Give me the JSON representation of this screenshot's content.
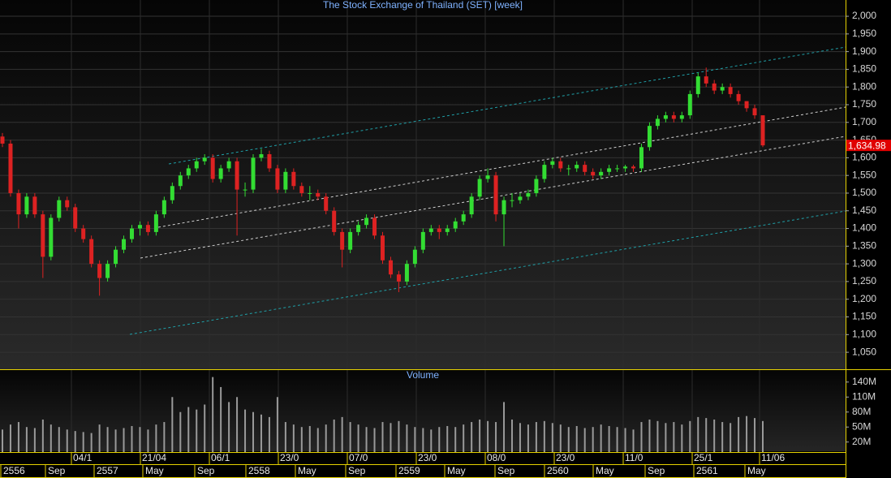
{
  "chart_data": [
    {
      "type": "candlestick",
      "title": "The Stock Exchange of Thailand (SET) [week]",
      "up_color": "#33dd33",
      "down_color": "#dd2222",
      "ylim": [
        1002,
        2046
      ],
      "yticks": [
        {
          "value": 1050,
          "label": "1,050"
        },
        {
          "value": 1100,
          "label": "1,100"
        },
        {
          "value": 1150,
          "label": "1,150"
        },
        {
          "value": 1200,
          "label": "1,200"
        },
        {
          "value": 1250,
          "label": "1,250"
        },
        {
          "value": 1300,
          "label": "1,300"
        },
        {
          "value": 1350,
          "label": "1,350"
        },
        {
          "value": 1400,
          "label": "1,400"
        },
        {
          "value": 1450,
          "label": "1,450"
        },
        {
          "value": 1500,
          "label": "1,500"
        },
        {
          "value": 1550,
          "label": "1,550"
        },
        {
          "value": 1600,
          "label": "1,600"
        },
        {
          "value": 1650,
          "label": "1,650"
        },
        {
          "value": 1700,
          "label": "1,700"
        },
        {
          "value": 1750,
          "label": "1,750"
        },
        {
          "value": 1800,
          "label": "1,800"
        },
        {
          "value": 1850,
          "label": "1,850"
        },
        {
          "value": 1900,
          "label": "1,900"
        },
        {
          "value": 1950,
          "label": "1,950"
        },
        {
          "value": 2000,
          "label": "2,000"
        }
      ],
      "grid": true,
      "last_label": "1,634.98",
      "ohlc": [
        [
          1660,
          1670,
          1630,
          1640
        ],
        [
          1640,
          1650,
          1490,
          1500
        ],
        [
          1500,
          1510,
          1400,
          1440
        ],
        [
          1440,
          1500,
          1430,
          1490
        ],
        [
          1490,
          1500,
          1430,
          1440
        ],
        [
          1440,
          1450,
          1260,
          1320
        ],
        [
          1320,
          1440,
          1310,
          1430
        ],
        [
          1430,
          1490,
          1420,
          1480
        ],
        [
          1480,
          1490,
          1450,
          1460
        ],
        [
          1460,
          1470,
          1390,
          1400
        ],
        [
          1400,
          1410,
          1360,
          1370
        ],
        [
          1370,
          1380,
          1290,
          1300
        ],
        [
          1300,
          1310,
          1210,
          1260
        ],
        [
          1260,
          1310,
          1250,
          1300
        ],
        [
          1300,
          1350,
          1290,
          1340
        ],
        [
          1340,
          1380,
          1330,
          1370
        ],
        [
          1370,
          1410,
          1360,
          1400
        ],
        [
          1400,
          1420,
          1380,
          1410
        ],
        [
          1410,
          1420,
          1380,
          1390
        ],
        [
          1390,
          1450,
          1380,
          1440
        ],
        [
          1440,
          1490,
          1430,
          1480
        ],
        [
          1480,
          1530,
          1470,
          1520
        ],
        [
          1520,
          1560,
          1510,
          1550
        ],
        [
          1550,
          1580,
          1540,
          1570
        ],
        [
          1570,
          1600,
          1560,
          1590
        ],
        [
          1590,
          1610,
          1580,
          1600
        ],
        [
          1600,
          1610,
          1530,
          1540
        ],
        [
          1540,
          1580,
          1530,
          1570
        ],
        [
          1570,
          1600,
          1560,
          1590
        ],
        [
          1590,
          1600,
          1380,
          1510
        ],
        [
          1510,
          1530,
          1490,
          1510
        ],
        [
          1510,
          1610,
          1500,
          1600
        ],
        [
          1600,
          1625,
          1590,
          1610
        ],
        [
          1610,
          1620,
          1560,
          1570
        ],
        [
          1570,
          1580,
          1500,
          1510
        ],
        [
          1510,
          1570,
          1500,
          1560
        ],
        [
          1560,
          1570,
          1510,
          1520
        ],
        [
          1520,
          1530,
          1490,
          1500
        ],
        [
          1500,
          1520,
          1480,
          1500
        ],
        [
          1500,
          1510,
          1480,
          1490
        ],
        [
          1490,
          1500,
          1440,
          1450
        ],
        [
          1450,
          1460,
          1380,
          1390
        ],
        [
          1390,
          1400,
          1290,
          1340
        ],
        [
          1340,
          1400,
          1330,
          1390
        ],
        [
          1390,
          1420,
          1380,
          1410
        ],
        [
          1410,
          1440,
          1400,
          1430
        ],
        [
          1430,
          1440,
          1370,
          1380
        ],
        [
          1380,
          1390,
          1300,
          1310
        ],
        [
          1310,
          1320,
          1260,
          1270
        ],
        [
          1270,
          1280,
          1220,
          1250
        ],
        [
          1250,
          1310,
          1240,
          1300
        ],
        [
          1300,
          1350,
          1290,
          1340
        ],
        [
          1340,
          1400,
          1330,
          1390
        ],
        [
          1390,
          1410,
          1380,
          1400
        ],
        [
          1400,
          1410,
          1370,
          1390
        ],
        [
          1390,
          1410,
          1380,
          1400
        ],
        [
          1400,
          1430,
          1390,
          1420
        ],
        [
          1420,
          1450,
          1410,
          1440
        ],
        [
          1440,
          1500,
          1430,
          1490
        ],
        [
          1490,
          1550,
          1480,
          1540
        ],
        [
          1540,
          1570,
          1530,
          1550
        ],
        [
          1550,
          1560,
          1420,
          1440
        ],
        [
          1440,
          1490,
          1350,
          1480
        ],
        [
          1480,
          1500,
          1460,
          1480
        ],
        [
          1480,
          1500,
          1470,
          1490
        ],
        [
          1490,
          1510,
          1480,
          1500
        ],
        [
          1500,
          1550,
          1490,
          1540
        ],
        [
          1540,
          1590,
          1530,
          1580
        ],
        [
          1580,
          1600,
          1570,
          1590
        ],
        [
          1590,
          1600,
          1560,
          1570
        ],
        [
          1570,
          1580,
          1550,
          1570
        ],
        [
          1570,
          1590,
          1560,
          1580
        ],
        [
          1580,
          1590,
          1550,
          1560
        ],
        [
          1560,
          1570,
          1540,
          1550
        ],
        [
          1550,
          1570,
          1540,
          1560
        ],
        [
          1560,
          1580,
          1550,
          1570
        ],
        [
          1570,
          1580,
          1560,
          1570
        ],
        [
          1570,
          1580,
          1560,
          1575
        ],
        [
          1575,
          1580,
          1560,
          1570
        ],
        [
          1570,
          1640,
          1560,
          1630
        ],
        [
          1630,
          1700,
          1620,
          1690
        ],
        [
          1690,
          1720,
          1680,
          1710
        ],
        [
          1710,
          1730,
          1700,
          1720
        ],
        [
          1720,
          1730,
          1700,
          1710
        ],
        [
          1710,
          1730,
          1700,
          1720
        ],
        [
          1720,
          1790,
          1710,
          1780
        ],
        [
          1780,
          1840,
          1770,
          1830
        ],
        [
          1830,
          1855,
          1800,
          1810
        ],
        [
          1810,
          1820,
          1780,
          1790
        ],
        [
          1790,
          1810,
          1780,
          1800
        ],
        [
          1800,
          1810,
          1770,
          1780
        ],
        [
          1780,
          1790,
          1750,
          1760
        ],
        [
          1760,
          1760,
          1730,
          1740
        ],
        [
          1740,
          1750,
          1710,
          1720
        ],
        [
          1720,
          1720,
          1630,
          1634.98
        ]
      ]
    },
    {
      "type": "bar",
      "title": "Volume",
      "color": "#9a9a9a",
      "ylim": [
        0,
        164
      ],
      "yticks": [
        {
          "value": 20,
          "label": "20M"
        },
        {
          "value": 50,
          "label": "50M"
        },
        {
          "value": 80,
          "label": "80M"
        },
        {
          "value": 110,
          "label": "110M"
        },
        {
          "value": 140,
          "label": "140M"
        }
      ],
      "values": [
        45,
        55,
        60,
        50,
        48,
        65,
        55,
        50,
        45,
        42,
        40,
        38,
        55,
        50,
        45,
        48,
        52,
        50,
        45,
        55,
        60,
        110,
        80,
        90,
        85,
        95,
        150,
        130,
        100,
        110,
        85,
        80,
        75,
        70,
        110,
        60,
        55,
        50,
        52,
        48,
        55,
        65,
        70,
        60,
        55,
        50,
        48,
        60,
        58,
        62,
        55,
        50,
        48,
        45,
        50,
        52,
        50,
        55,
        60,
        65,
        62,
        60,
        100,
        65,
        58,
        55,
        60,
        62,
        58,
        55,
        50,
        52,
        48,
        50,
        55,
        52,
        50,
        48,
        45,
        60,
        65,
        62,
        58,
        60,
        55,
        62,
        70,
        68,
        65,
        60,
        58,
        70,
        72,
        68,
        62
      ],
      "date_labels": [
        "04/1",
        "21/04",
        "06/1",
        "23/0",
        "07/0",
        "23/0",
        "08/0",
        "23/0",
        "11/0",
        "25/1",
        "11/06"
      ],
      "period_labels": [
        "2556",
        "Sep",
        "2557",
        "May",
        "Sep",
        "2558",
        "May",
        "Sep",
        "2559",
        "May",
        "Sep",
        "2560",
        "May",
        "Sep",
        "2561",
        "May"
      ]
    }
  ]
}
